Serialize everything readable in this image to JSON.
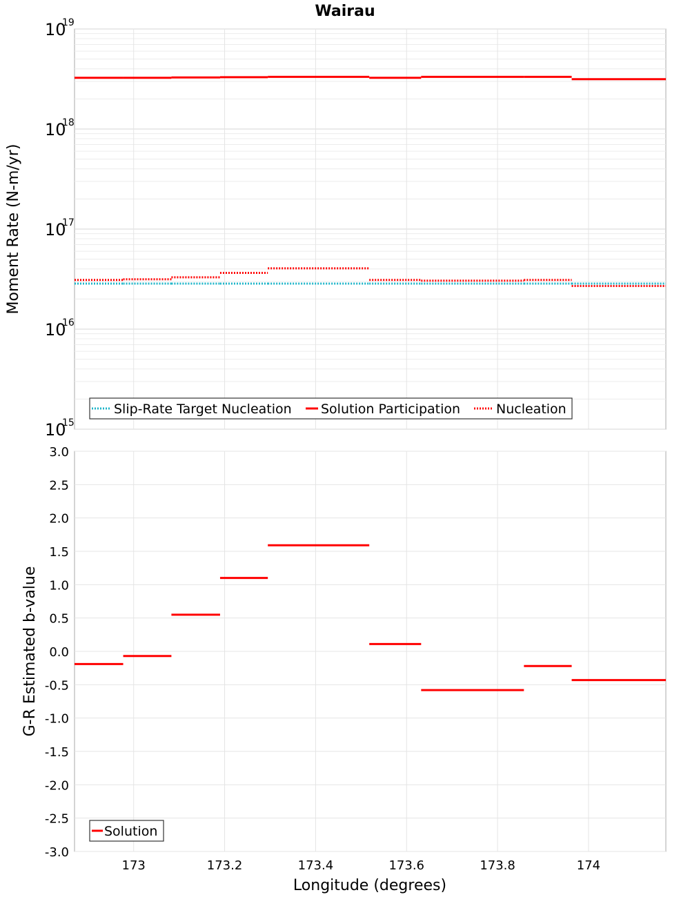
{
  "chart_data": [
    {
      "type": "line",
      "title": "Wairau",
      "xlabel": "Longitude (degrees)",
      "ylabel": "Moment Rate (N-m/yr)",
      "yscale": "log",
      "ylim": [
        1000000000000000.0,
        1e+19
      ],
      "xlim": [
        172.87,
        174.17
      ],
      "ytick_labels": [
        {
          "base": "10",
          "exp": "15"
        },
        {
          "base": "10",
          "exp": "16"
        },
        {
          "base": "10",
          "exp": "17"
        },
        {
          "base": "10",
          "exp": "18"
        },
        {
          "base": "10",
          "exp": "19"
        }
      ],
      "x_edges": [
        172.87,
        172.977,
        173.083,
        173.19,
        173.295,
        173.518,
        173.632,
        173.858,
        173.963,
        174.17
      ],
      "series": [
        {
          "name": "Slip-Rate Target Nucleation",
          "color": "#1cb4c8",
          "style": "dotted",
          "values": [
            2.85e+16,
            2.85e+16,
            2.85e+16,
            2.85e+16,
            2.85e+16,
            2.85e+16,
            2.85e+16,
            2.85e+16,
            2.85e+16
          ]
        },
        {
          "name": "Solution Participation",
          "color": "#ff0000",
          "style": "solid",
          "values": [
            3.25e+18,
            3.25e+18,
            3.28e+18,
            3.3e+18,
            3.32e+18,
            3.25e+18,
            3.32e+18,
            3.32e+18,
            3.15e+18
          ]
        },
        {
          "name": "Nucleation",
          "color": "#ff0000",
          "style": "dotted",
          "values": [
            3.1e+16,
            3.15e+16,
            3.3e+16,
            3.65e+16,
            4.05e+16,
            3.1e+16,
            3.05e+16,
            3.1e+16,
            2.7e+16
          ]
        }
      ]
    },
    {
      "type": "line",
      "xlabel": "Longitude (degrees)",
      "ylabel": "G-R Estimated b-value",
      "ylim": [
        -3.0,
        3.0
      ],
      "xlim": [
        172.87,
        174.17
      ],
      "yticks": [
        -3.0,
        -2.5,
        -2.0,
        -1.5,
        -1.0,
        -0.5,
        0.0,
        0.5,
        1.0,
        1.5,
        2.0,
        2.5,
        3.0
      ],
      "ytick_labels": [
        "-3.0",
        "-2.5",
        "-2.0",
        "-1.5",
        "-1.0",
        "-0.5",
        "0.0",
        "0.5",
        "1.0",
        "1.5",
        "2.0",
        "2.5",
        "3.0"
      ],
      "xticks": [
        173.0,
        173.2,
        173.4,
        173.6,
        173.8,
        174.0
      ],
      "xtick_labels": [
        "173",
        "173.2",
        "173.4",
        "173.6",
        "173.8",
        "174"
      ],
      "x_edges": [
        172.87,
        172.977,
        173.083,
        173.19,
        173.295,
        173.518,
        173.632,
        173.858,
        173.963,
        174.17
      ],
      "series": [
        {
          "name": "Solution",
          "color": "#ff0000",
          "style": "solid",
          "values": [
            -0.19,
            -0.07,
            0.55,
            1.1,
            1.59,
            0.11,
            -0.58,
            -0.22,
            -0.43
          ]
        }
      ]
    }
  ]
}
